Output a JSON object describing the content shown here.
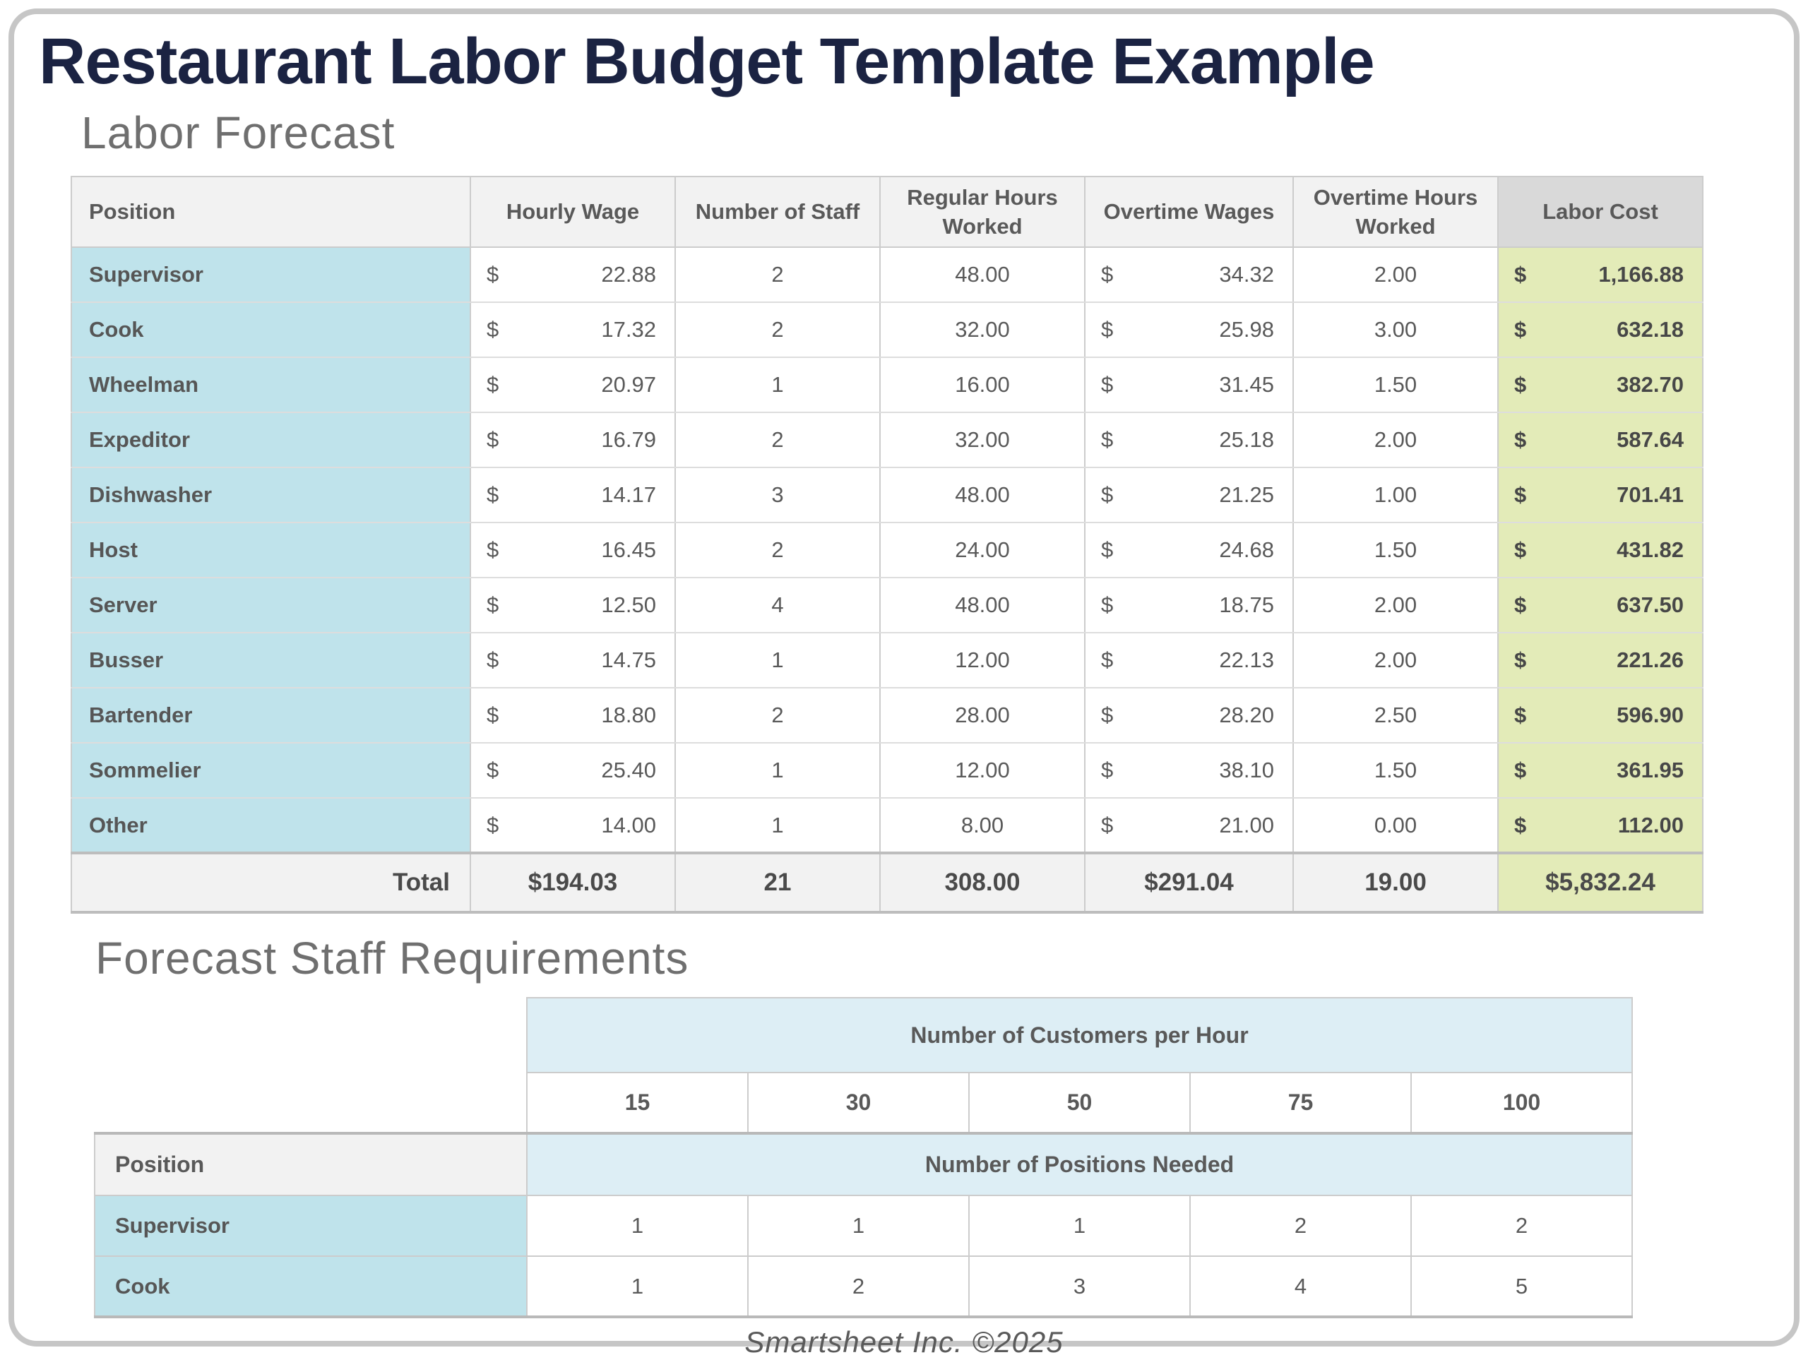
{
  "page": {
    "title": "Restaurant Labor Budget Template Example",
    "footer": "Smartsheet Inc. ©2025"
  },
  "labor_forecast": {
    "heading": "Labor Forecast",
    "currency": "$",
    "columns": {
      "position": "Position",
      "hourly_wage": "Hourly Wage",
      "staff": "Number of Staff",
      "regular_hours": "Regular Hours Worked",
      "overtime_wages": "Overtime Wages",
      "overtime_hours": "Overtime Hours Worked",
      "labor_cost": "Labor Cost"
    },
    "rows": [
      {
        "position": "Supervisor",
        "hourly_wage": "22.88",
        "staff": "2",
        "regular_hours": "48.00",
        "overtime_wage": "34.32",
        "overtime_hours": "2.00",
        "labor_cost": "1,166.88"
      },
      {
        "position": "Cook",
        "hourly_wage": "17.32",
        "staff": "2",
        "regular_hours": "32.00",
        "overtime_wage": "25.98",
        "overtime_hours": "3.00",
        "labor_cost": "632.18"
      },
      {
        "position": "Wheelman",
        "hourly_wage": "20.97",
        "staff": "1",
        "regular_hours": "16.00",
        "overtime_wage": "31.45",
        "overtime_hours": "1.50",
        "labor_cost": "382.70"
      },
      {
        "position": "Expeditor",
        "hourly_wage": "16.79",
        "staff": "2",
        "regular_hours": "32.00",
        "overtime_wage": "25.18",
        "overtime_hours": "2.00",
        "labor_cost": "587.64"
      },
      {
        "position": "Dishwasher",
        "hourly_wage": "14.17",
        "staff": "3",
        "regular_hours": "48.00",
        "overtime_wage": "21.25",
        "overtime_hours": "1.00",
        "labor_cost": "701.41"
      },
      {
        "position": "Host",
        "hourly_wage": "16.45",
        "staff": "2",
        "regular_hours": "24.00",
        "overtime_wage": "24.68",
        "overtime_hours": "1.50",
        "labor_cost": "431.82"
      },
      {
        "position": "Server",
        "hourly_wage": "12.50",
        "staff": "4",
        "regular_hours": "48.00",
        "overtime_wage": "18.75",
        "overtime_hours": "2.00",
        "labor_cost": "637.50"
      },
      {
        "position": "Busser",
        "hourly_wage": "14.75",
        "staff": "1",
        "regular_hours": "12.00",
        "overtime_wage": "22.13",
        "overtime_hours": "2.00",
        "labor_cost": "221.26"
      },
      {
        "position": "Bartender",
        "hourly_wage": "18.80",
        "staff": "2",
        "regular_hours": "28.00",
        "overtime_wage": "28.20",
        "overtime_hours": "2.50",
        "labor_cost": "596.90"
      },
      {
        "position": "Sommelier",
        "hourly_wage": "25.40",
        "staff": "1",
        "regular_hours": "12.00",
        "overtime_wage": "38.10",
        "overtime_hours": "1.50",
        "labor_cost": "361.95"
      },
      {
        "position": "Other",
        "hourly_wage": "14.00",
        "staff": "1",
        "regular_hours": "8.00",
        "overtime_wage": "21.00",
        "overtime_hours": "0.00",
        "labor_cost": "112.00"
      }
    ],
    "total": {
      "label": "Total",
      "hourly_wage": "$194.03",
      "staff": "21",
      "regular_hours": "308.00",
      "overtime_wage": "$291.04",
      "overtime_hours": "19.00",
      "labor_cost": "$5,832.24"
    }
  },
  "staff_requirements": {
    "heading": "Forecast Staff Requirements",
    "customers_header": "Number of Customers per Hour",
    "customer_counts": [
      "15",
      "30",
      "50",
      "75",
      "100"
    ],
    "position_header": "Position",
    "positions_needed_header": "Number of Positions Needed",
    "rows": [
      {
        "position": "Supervisor",
        "values": [
          "1",
          "1",
          "1",
          "2",
          "2"
        ]
      },
      {
        "position": "Cook",
        "values": [
          "1",
          "2",
          "3",
          "4",
          "5"
        ]
      }
    ]
  }
}
